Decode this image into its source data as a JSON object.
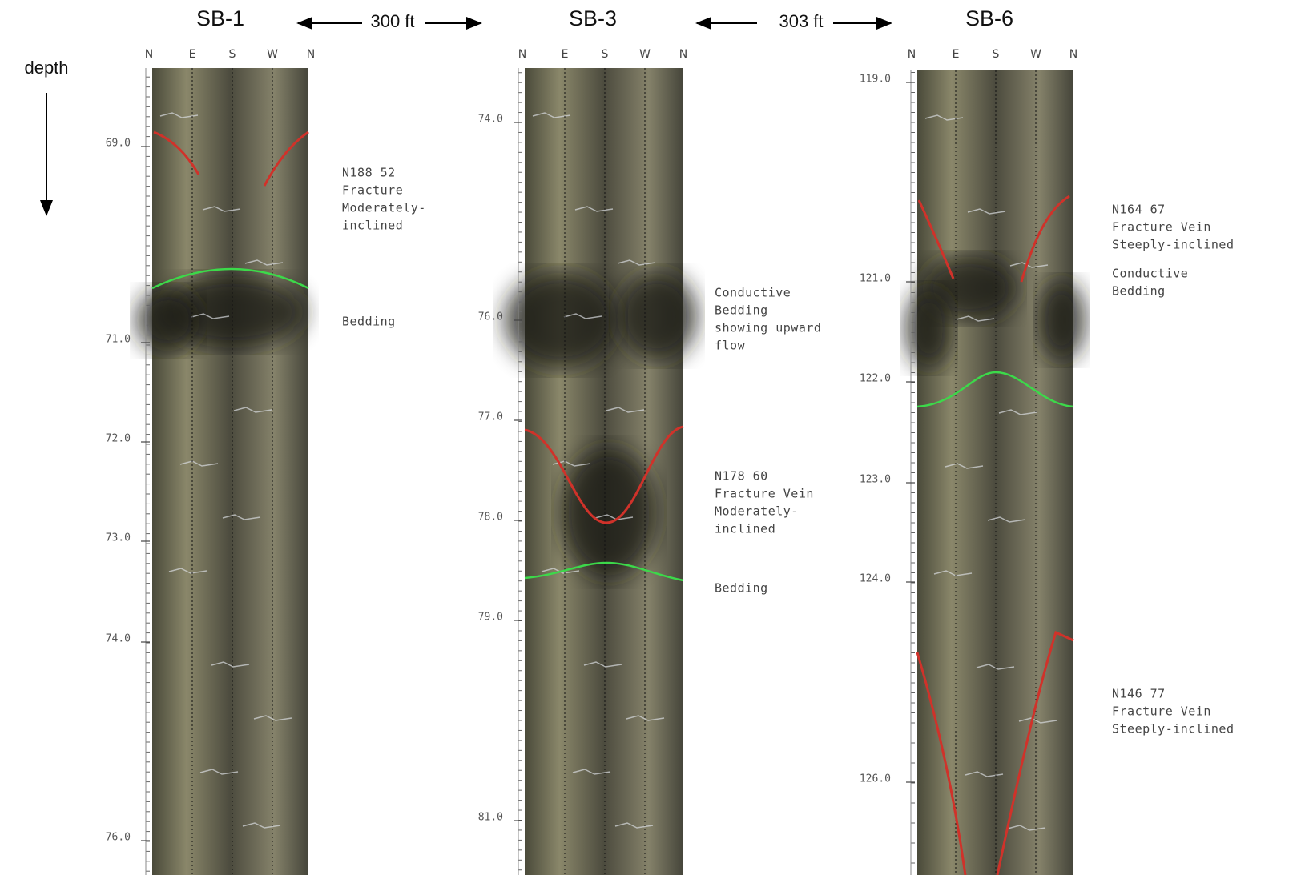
{
  "header": {
    "distances": [
      "300 ft",
      "303 ft"
    ],
    "depth_label": "depth"
  },
  "logs": [
    {
      "title": "SB-1",
      "compass": [
        "N",
        "E",
        "S",
        "W",
        "N"
      ],
      "depth_ticks": [
        "69.0",
        "71.0",
        "72.0",
        "73.0",
        "74.0",
        "76.0"
      ],
      "annotations": [
        [
          "N188 52",
          "Fracture",
          "Moderately-",
          "inclined"
        ],
        [
          "Bedding"
        ]
      ]
    },
    {
      "title": "SB-3",
      "compass": [
        "N",
        "E",
        "S",
        "W",
        "N"
      ],
      "depth_ticks": [
        "74.0",
        "76.0",
        "77.0",
        "78.0",
        "79.0",
        "81.0"
      ],
      "annotations": [
        [
          "Conductive",
          "Bedding",
          "showing upward",
          "flow"
        ],
        [
          "N178 60",
          "Fracture Vein",
          "Moderately-",
          "inclined"
        ],
        [
          "Bedding"
        ]
      ]
    },
    {
      "title": "SB-6",
      "compass": [
        "N",
        "E",
        "S",
        "W",
        "N"
      ],
      "depth_ticks": [
        "119.0",
        "121.0",
        "122.0",
        "123.0",
        "124.0",
        "126.0"
      ],
      "annotations": [
        [
          "N164 67",
          "Fracture Vein",
          "Steeply-inclined"
        ],
        [
          "Conductive",
          "Bedding"
        ],
        [
          "N146 77",
          "Fracture Vein",
          "Steeply-inclined"
        ]
      ]
    }
  ]
}
